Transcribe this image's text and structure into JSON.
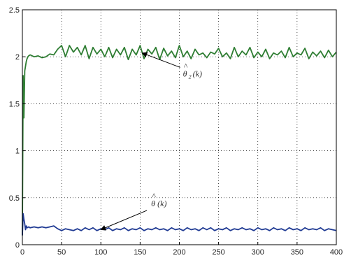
{
  "chart_data": {
    "type": "line",
    "title": "",
    "xlabel": "",
    "ylabel": "",
    "xlim": [
      0,
      400
    ],
    "ylim": [
      0,
      2.5
    ],
    "grid": true,
    "x_ticks": [
      "0",
      "50",
      "100",
      "150",
      "200",
      "250",
      "300",
      "350",
      "400"
    ],
    "y_ticks": [
      "0",
      "0.5",
      "1",
      "1.5",
      "2",
      "2.5"
    ],
    "series": [
      {
        "color": "#2e7d32",
        "x": [
          0,
          1,
          2,
          3,
          4,
          5,
          6,
          7,
          8,
          10,
          15,
          20,
          25,
          30,
          35,
          40,
          45,
          50,
          55,
          60,
          65,
          70,
          75,
          80,
          85,
          90,
          95,
          100,
          105,
          110,
          115,
          120,
          125,
          130,
          135,
          140,
          145,
          150,
          155,
          160,
          165,
          170,
          175,
          180,
          185,
          190,
          195,
          200,
          205,
          210,
          215,
          220,
          225,
          230,
          235,
          240,
          245,
          250,
          255,
          260,
          265,
          270,
          275,
          280,
          285,
          290,
          295,
          300,
          305,
          310,
          315,
          320,
          325,
          330,
          335,
          340,
          345,
          350,
          355,
          360,
          365,
          370,
          375,
          380,
          385,
          390,
          395,
          400
        ],
        "y": [
          0.1,
          1.8,
          1.35,
          1.85,
          1.9,
          1.95,
          1.98,
          2.0,
          2.01,
          2.02,
          2.0,
          2.01,
          1.99,
          2.0,
          2.03,
          2.02,
          2.08,
          2.12,
          2.0,
          2.12,
          2.05,
          2.1,
          2.02,
          2.12,
          1.98,
          2.1,
          2.03,
          2.08,
          2.0,
          2.1,
          1.99,
          2.08,
          2.02,
          2.1,
          1.97,
          2.08,
          2.02,
          2.12,
          1.98,
          2.08,
          2.03,
          2.1,
          1.97,
          2.09,
          2.01,
          2.06,
          1.99,
          2.12,
          2.0,
          2.06,
          1.98,
          2.08,
          2.02,
          2.04,
          1.99,
          2.05,
          2.03,
          2.09,
          2.0,
          2.04,
          1.98,
          2.1,
          2.0,
          2.06,
          2.02,
          2.1,
          1.99,
          2.05,
          2.0,
          2.08,
          1.98,
          2.04,
          2.02,
          2.06,
          1.99,
          2.1,
          2.0,
          2.04,
          2.02,
          2.09,
          1.98,
          2.05,
          2.01,
          2.06,
          1.99,
          2.07,
          2.0,
          2.05
        ]
      },
      {
        "color": "#1f3a93",
        "x": [
          0,
          1,
          2,
          3,
          4,
          5,
          6,
          8,
          10,
          15,
          20,
          25,
          30,
          35,
          40,
          45,
          50,
          55,
          60,
          65,
          70,
          75,
          80,
          85,
          90,
          95,
          100,
          105,
          110,
          115,
          120,
          125,
          130,
          135,
          140,
          145,
          150,
          155,
          160,
          165,
          170,
          175,
          180,
          185,
          190,
          195,
          200,
          205,
          210,
          215,
          220,
          225,
          230,
          235,
          240,
          245,
          250,
          255,
          260,
          265,
          270,
          275,
          280,
          285,
          290,
          295,
          300,
          305,
          310,
          315,
          320,
          325,
          330,
          335,
          340,
          345,
          350,
          355,
          360,
          365,
          370,
          375,
          380,
          385,
          390,
          395,
          400
        ],
        "y": [
          0.1,
          0.33,
          0.27,
          0.22,
          0.16,
          0.2,
          0.18,
          0.19,
          0.18,
          0.19,
          0.18,
          0.19,
          0.18,
          0.19,
          0.2,
          0.17,
          0.15,
          0.17,
          0.16,
          0.15,
          0.17,
          0.15,
          0.18,
          0.16,
          0.18,
          0.15,
          0.17,
          0.16,
          0.18,
          0.15,
          0.17,
          0.16,
          0.18,
          0.15,
          0.17,
          0.16,
          0.18,
          0.15,
          0.17,
          0.16,
          0.18,
          0.16,
          0.17,
          0.15,
          0.18,
          0.16,
          0.17,
          0.15,
          0.18,
          0.16,
          0.17,
          0.15,
          0.18,
          0.16,
          0.18,
          0.15,
          0.17,
          0.16,
          0.18,
          0.15,
          0.17,
          0.16,
          0.18,
          0.16,
          0.17,
          0.15,
          0.18,
          0.16,
          0.17,
          0.15,
          0.18,
          0.16,
          0.17,
          0.15,
          0.18,
          0.16,
          0.17,
          0.15,
          0.18,
          0.16,
          0.17,
          0.16,
          0.18,
          0.15,
          0.17,
          0.16,
          0.15
        ]
      }
    ],
    "annotations": [
      {
        "label_main": "θ",
        "label_hat": "^",
        "label_sub": "2",
        "label_arg": "(k)",
        "target": [
          150,
          2.04
        ]
      },
      {
        "label_main": "θ",
        "label_hat": "^",
        "label_sub": "",
        "label_arg": "(k)",
        "target": [
          100,
          0.16
        ]
      }
    ]
  }
}
